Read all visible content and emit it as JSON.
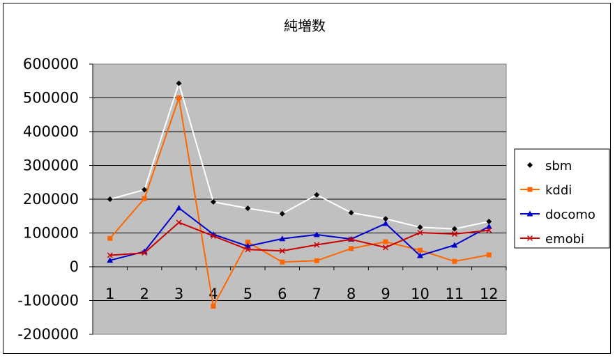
{
  "chart_data": {
    "type": "line",
    "title": "純増数",
    "xlabel": "",
    "ylabel": "",
    "categories": [
      "1",
      "2",
      "3",
      "4",
      "5",
      "6",
      "7",
      "8",
      "9",
      "10",
      "11",
      "12"
    ],
    "ylim": [
      -200000,
      600000
    ],
    "yticks": [
      600000,
      500000,
      400000,
      300000,
      200000,
      100000,
      0,
      -100000,
      -200000
    ],
    "ytick_labels": [
      "600000",
      "500000",
      "400000",
      "300000",
      "200000",
      "100000",
      "0",
      "-100000",
      "-200000"
    ],
    "grid": true,
    "legend": "right",
    "plot_background": "#c0c0c0",
    "series": [
      {
        "name": "sbm",
        "color": "#ffffff",
        "marker_color": "#000000",
        "marker": "diamond",
        "values": [
          200000,
          228000,
          543000,
          192000,
          173000,
          157000,
          213000,
          160000,
          142000,
          117000,
          112000,
          134000
        ]
      },
      {
        "name": "kddi",
        "color": "#ff6600",
        "marker_color": "#ff6600",
        "marker": "square",
        "values": [
          84000,
          202000,
          500000,
          -117000,
          73000,
          14000,
          18000,
          54000,
          74000,
          49000,
          16000,
          35000
        ]
      },
      {
        "name": "docomo",
        "color": "#0000cc",
        "marker_color": "#0000cc",
        "marker": "triangle",
        "values": [
          19000,
          45000,
          174000,
          96000,
          61000,
          83000,
          95000,
          82000,
          128000,
          33000,
          64000,
          119000
        ]
      },
      {
        "name": "emobi",
        "color": "#cc0000",
        "marker_color": "#cc0000",
        "marker": "x",
        "values": [
          34000,
          41000,
          131000,
          91000,
          51000,
          47000,
          65000,
          81000,
          57000,
          101000,
          97000,
          108000
        ]
      }
    ]
  }
}
